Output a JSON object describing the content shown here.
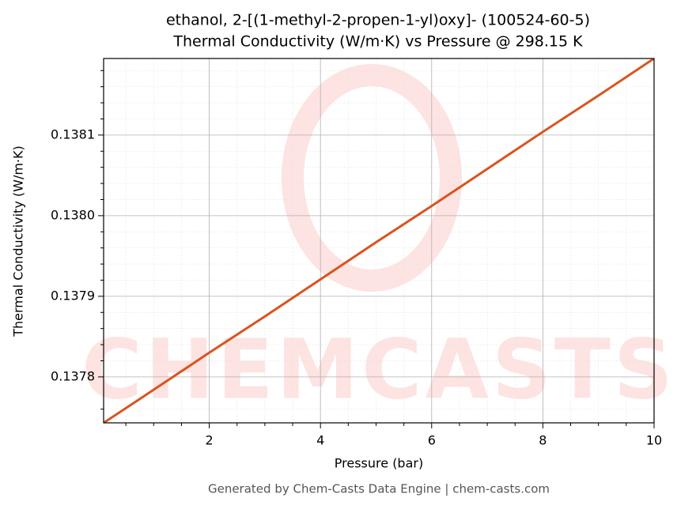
{
  "chart_data": {
    "type": "line",
    "title": [
      "ethanol, 2-[(1-methyl-2-propen-1-yl)oxy]- (100524-60-5)",
      "Thermal Conductivity (W/m·K) vs Pressure @ 298.15 K"
    ],
    "x_label": "Pressure (bar)",
    "y_label": "Thermal Conductivity (W/m·K)",
    "footer": "Generated by Chem-Casts Data Engine | chem-casts.com",
    "watermark": "CHEMCASTS",
    "x": [
      0.1,
      1,
      2,
      3,
      4,
      5,
      6,
      7,
      8,
      9,
      10
    ],
    "series": [
      {
        "name": "Thermal Conductivity",
        "color": "#d9541e",
        "values": [
          0.137743,
          0.137784,
          0.13783,
          0.137875,
          0.137921,
          0.137967,
          0.138012,
          0.138058,
          0.138104,
          0.138149,
          0.138195
        ]
      }
    ],
    "xlim": [
      0.1,
      10
    ],
    "ylim": [
      0.137743,
      0.138195
    ],
    "xticks": [
      2,
      4,
      6,
      8,
      10
    ],
    "yticks": [
      0.1378,
      0.1379,
      {
        "value": 0.138,
        "label": "0.1380"
      },
      0.1381
    ],
    "x_minor_ticks": [
      0.5,
      1,
      1.5,
      2.5,
      3,
      3.5,
      4.5,
      5,
      5.5,
      6.5,
      7,
      7.5,
      8.5,
      9,
      9.5
    ],
    "y_minor_ticks": [
      0.13776,
      0.13782,
      0.13784,
      0.13786,
      0.13788,
      0.13792,
      0.13794,
      0.13796,
      0.13798,
      0.13802,
      0.13804,
      0.13806,
      0.13808,
      0.13812,
      0.13814,
      0.13816,
      0.13818
    ],
    "grid": true
  }
}
